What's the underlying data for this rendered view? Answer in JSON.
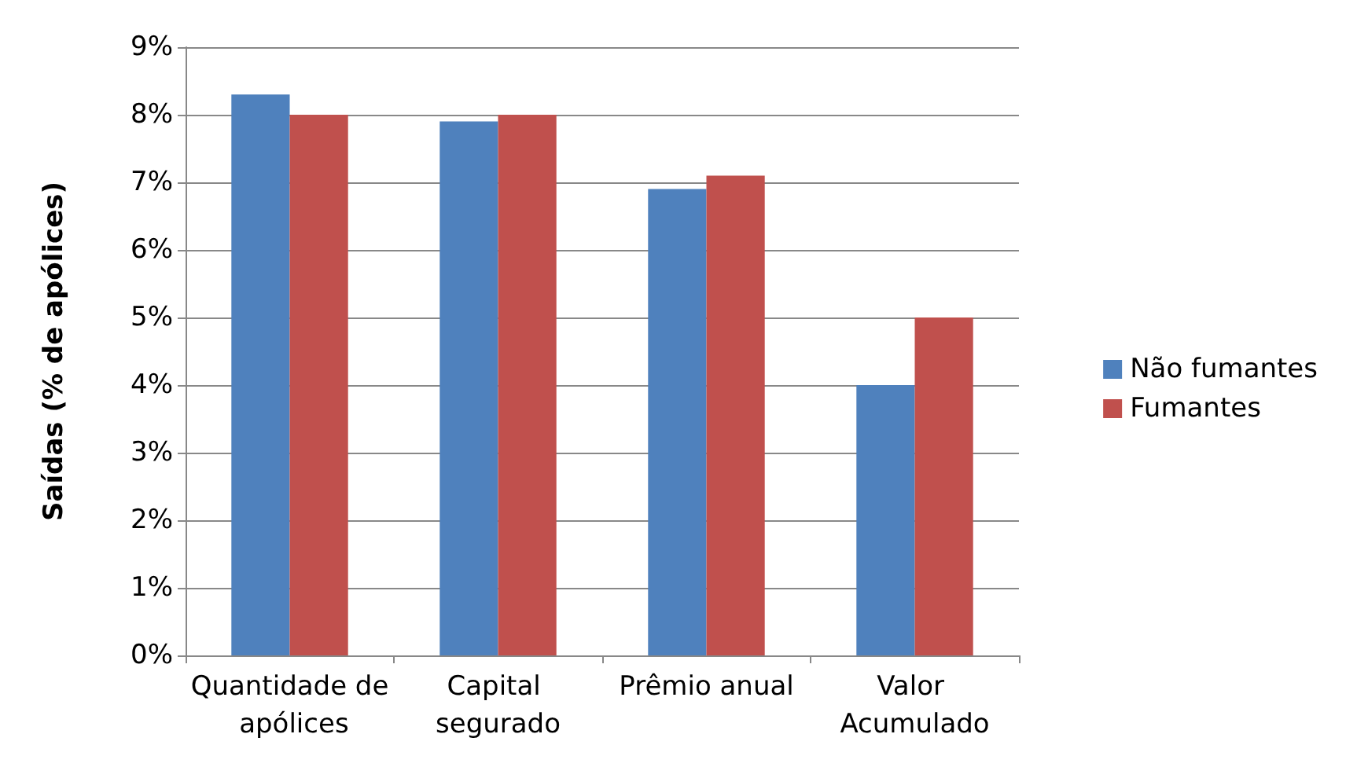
{
  "chart_data": {
    "type": "bar",
    "ylabel": "Saídas (% de apólices)",
    "categories": [
      "Quantidade de apólices",
      "Capital segurado",
      "Prêmio anual",
      "Valor Acumulado"
    ],
    "series": [
      {
        "name": "Não fumantes",
        "color": "#4f81bd",
        "values": [
          8.3,
          7.9,
          6.9,
          4.0
        ]
      },
      {
        "name": "Fumantes",
        "color": "#c0504d",
        "values": [
          8.0,
          8.0,
          7.1,
          5.0
        ]
      }
    ],
    "ylim": [
      0,
      9
    ],
    "yticks": [
      {
        "value": 0,
        "label": "0%"
      },
      {
        "value": 1,
        "label": "1%"
      },
      {
        "value": 2,
        "label": "2%"
      },
      {
        "value": 3,
        "label": "3%"
      },
      {
        "value": 4,
        "label": "4%"
      },
      {
        "value": 5,
        "label": "5%"
      },
      {
        "value": 6,
        "label": "6%"
      },
      {
        "value": 7,
        "label": "7%"
      },
      {
        "value": 8,
        "label": "8%"
      },
      {
        "value": 9,
        "label": "9%"
      }
    ],
    "grid": "y",
    "legend": "right"
  }
}
